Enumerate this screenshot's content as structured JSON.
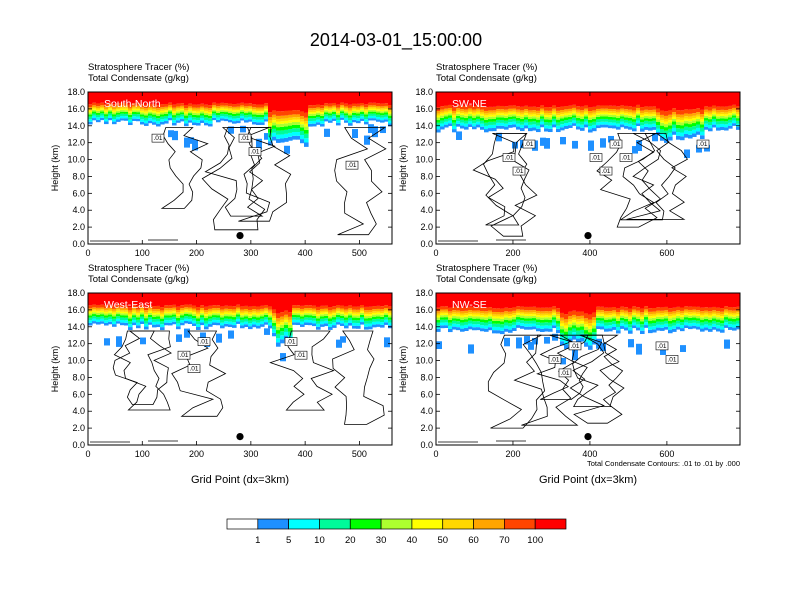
{
  "title": "2014-03-01_15:00:00",
  "colors": {
    "levels": [
      "#ffffff",
      "#1e90ff",
      "#00ffff",
      "#00fa9a",
      "#00ff00",
      "#adff2f",
      "#ffff00",
      "#ffd700",
      "#ffa500",
      "#ff4500",
      "#ff0000"
    ],
    "contour": "#000000",
    "marker": "#000000"
  },
  "chart_data": [
    {
      "type": "heatmap",
      "panel_label": "South-North",
      "title_line1": "Stratosphere Tracer   (%)",
      "title_line2": "Total Condensate   (g/kg)",
      "ylabel": "Height (km)",
      "xlabel": "",
      "xlim": [
        0,
        560
      ],
      "ylim": [
        0,
        18
      ],
      "xticks": [
        "0",
        "100",
        "200",
        "300",
        "400",
        "500"
      ],
      "yticks": [
        "0.0",
        "2.0",
        "4.0",
        "6.0",
        "8.0",
        "10.0",
        "12.0",
        "14.0",
        "16.0",
        "18.0"
      ],
      "tracer_base_km": 14.3,
      "marker_x": 280,
      "marker_y_km": 1.0,
      "contour_labels": [
        ".01",
        ".01",
        ".01",
        ".01"
      ]
    },
    {
      "type": "heatmap",
      "panel_label": "SW-NE",
      "title_line1": "Stratosphere Tracer   (%)",
      "title_line2": "Total Condensate   (g/kg)",
      "ylabel": "Height (km)",
      "xlabel": "",
      "xlim": [
        0,
        790
      ],
      "ylim": [
        0,
        18
      ],
      "xticks": [
        "0",
        "200",
        "400",
        "600"
      ],
      "yticks": [
        "0.0",
        "2.0",
        "4.0",
        "6.0",
        "8.0",
        "10.0",
        "12.0",
        "14.0",
        "16.0",
        "18.0"
      ],
      "tracer_base_km": 13.6,
      "marker_x": 395,
      "marker_y_km": 1.0,
      "contour_labels": [
        ".01",
        ".01",
        ".01",
        ".01",
        ".01",
        ".01",
        ".01",
        ".01"
      ]
    },
    {
      "type": "heatmap",
      "panel_label": "West-East",
      "title_line1": "Stratosphere Tracer   (%)",
      "title_line2": "Total Condensate   (g/kg)",
      "ylabel": "Height (km)",
      "xlabel": "Grid Point (dx=3km)",
      "xlim": [
        0,
        560
      ],
      "ylim": [
        0,
        18
      ],
      "xticks": [
        "0",
        "100",
        "200",
        "300",
        "400",
        "500"
      ],
      "yticks": [
        "0.0",
        "2.0",
        "4.0",
        "6.0",
        "8.0",
        "10.0",
        "12.0",
        "14.0",
        "16.0",
        "18.0"
      ],
      "tracer_base_km": 14.0,
      "marker_x": 280,
      "marker_y_km": 1.0,
      "contour_labels": [
        ".01",
        ".01",
        ".01",
        ".01",
        ".01"
      ]
    },
    {
      "type": "heatmap",
      "panel_label": "NW-SE",
      "title_line1": "Stratosphere Tracer   (%)",
      "title_line2": "Total Condensate   (g/kg)",
      "ylabel": "Height (km)",
      "xlabel": "Grid Point (dx=3km)",
      "xlim": [
        0,
        790
      ],
      "ylim": [
        0,
        18
      ],
      "xticks": [
        "0",
        "200",
        "400",
        "600"
      ],
      "yticks": [
        "0.0",
        "2.0",
        "4.0",
        "6.0",
        "8.0",
        "10.0",
        "12.0",
        "14.0",
        "16.0",
        "18.0"
      ],
      "tracer_base_km": 13.5,
      "marker_x": 395,
      "marker_y_km": 1.0,
      "contour_labels": [
        ".01",
        ".01",
        ".01",
        ".01",
        ".01"
      ],
      "footnote": "Total Condensate Contours: .01 to .01 by .000"
    }
  ],
  "colorbar": {
    "labels": [
      "1",
      "5",
      "10",
      "20",
      "30",
      "40",
      "50",
      "60",
      "70",
      "100"
    ]
  }
}
